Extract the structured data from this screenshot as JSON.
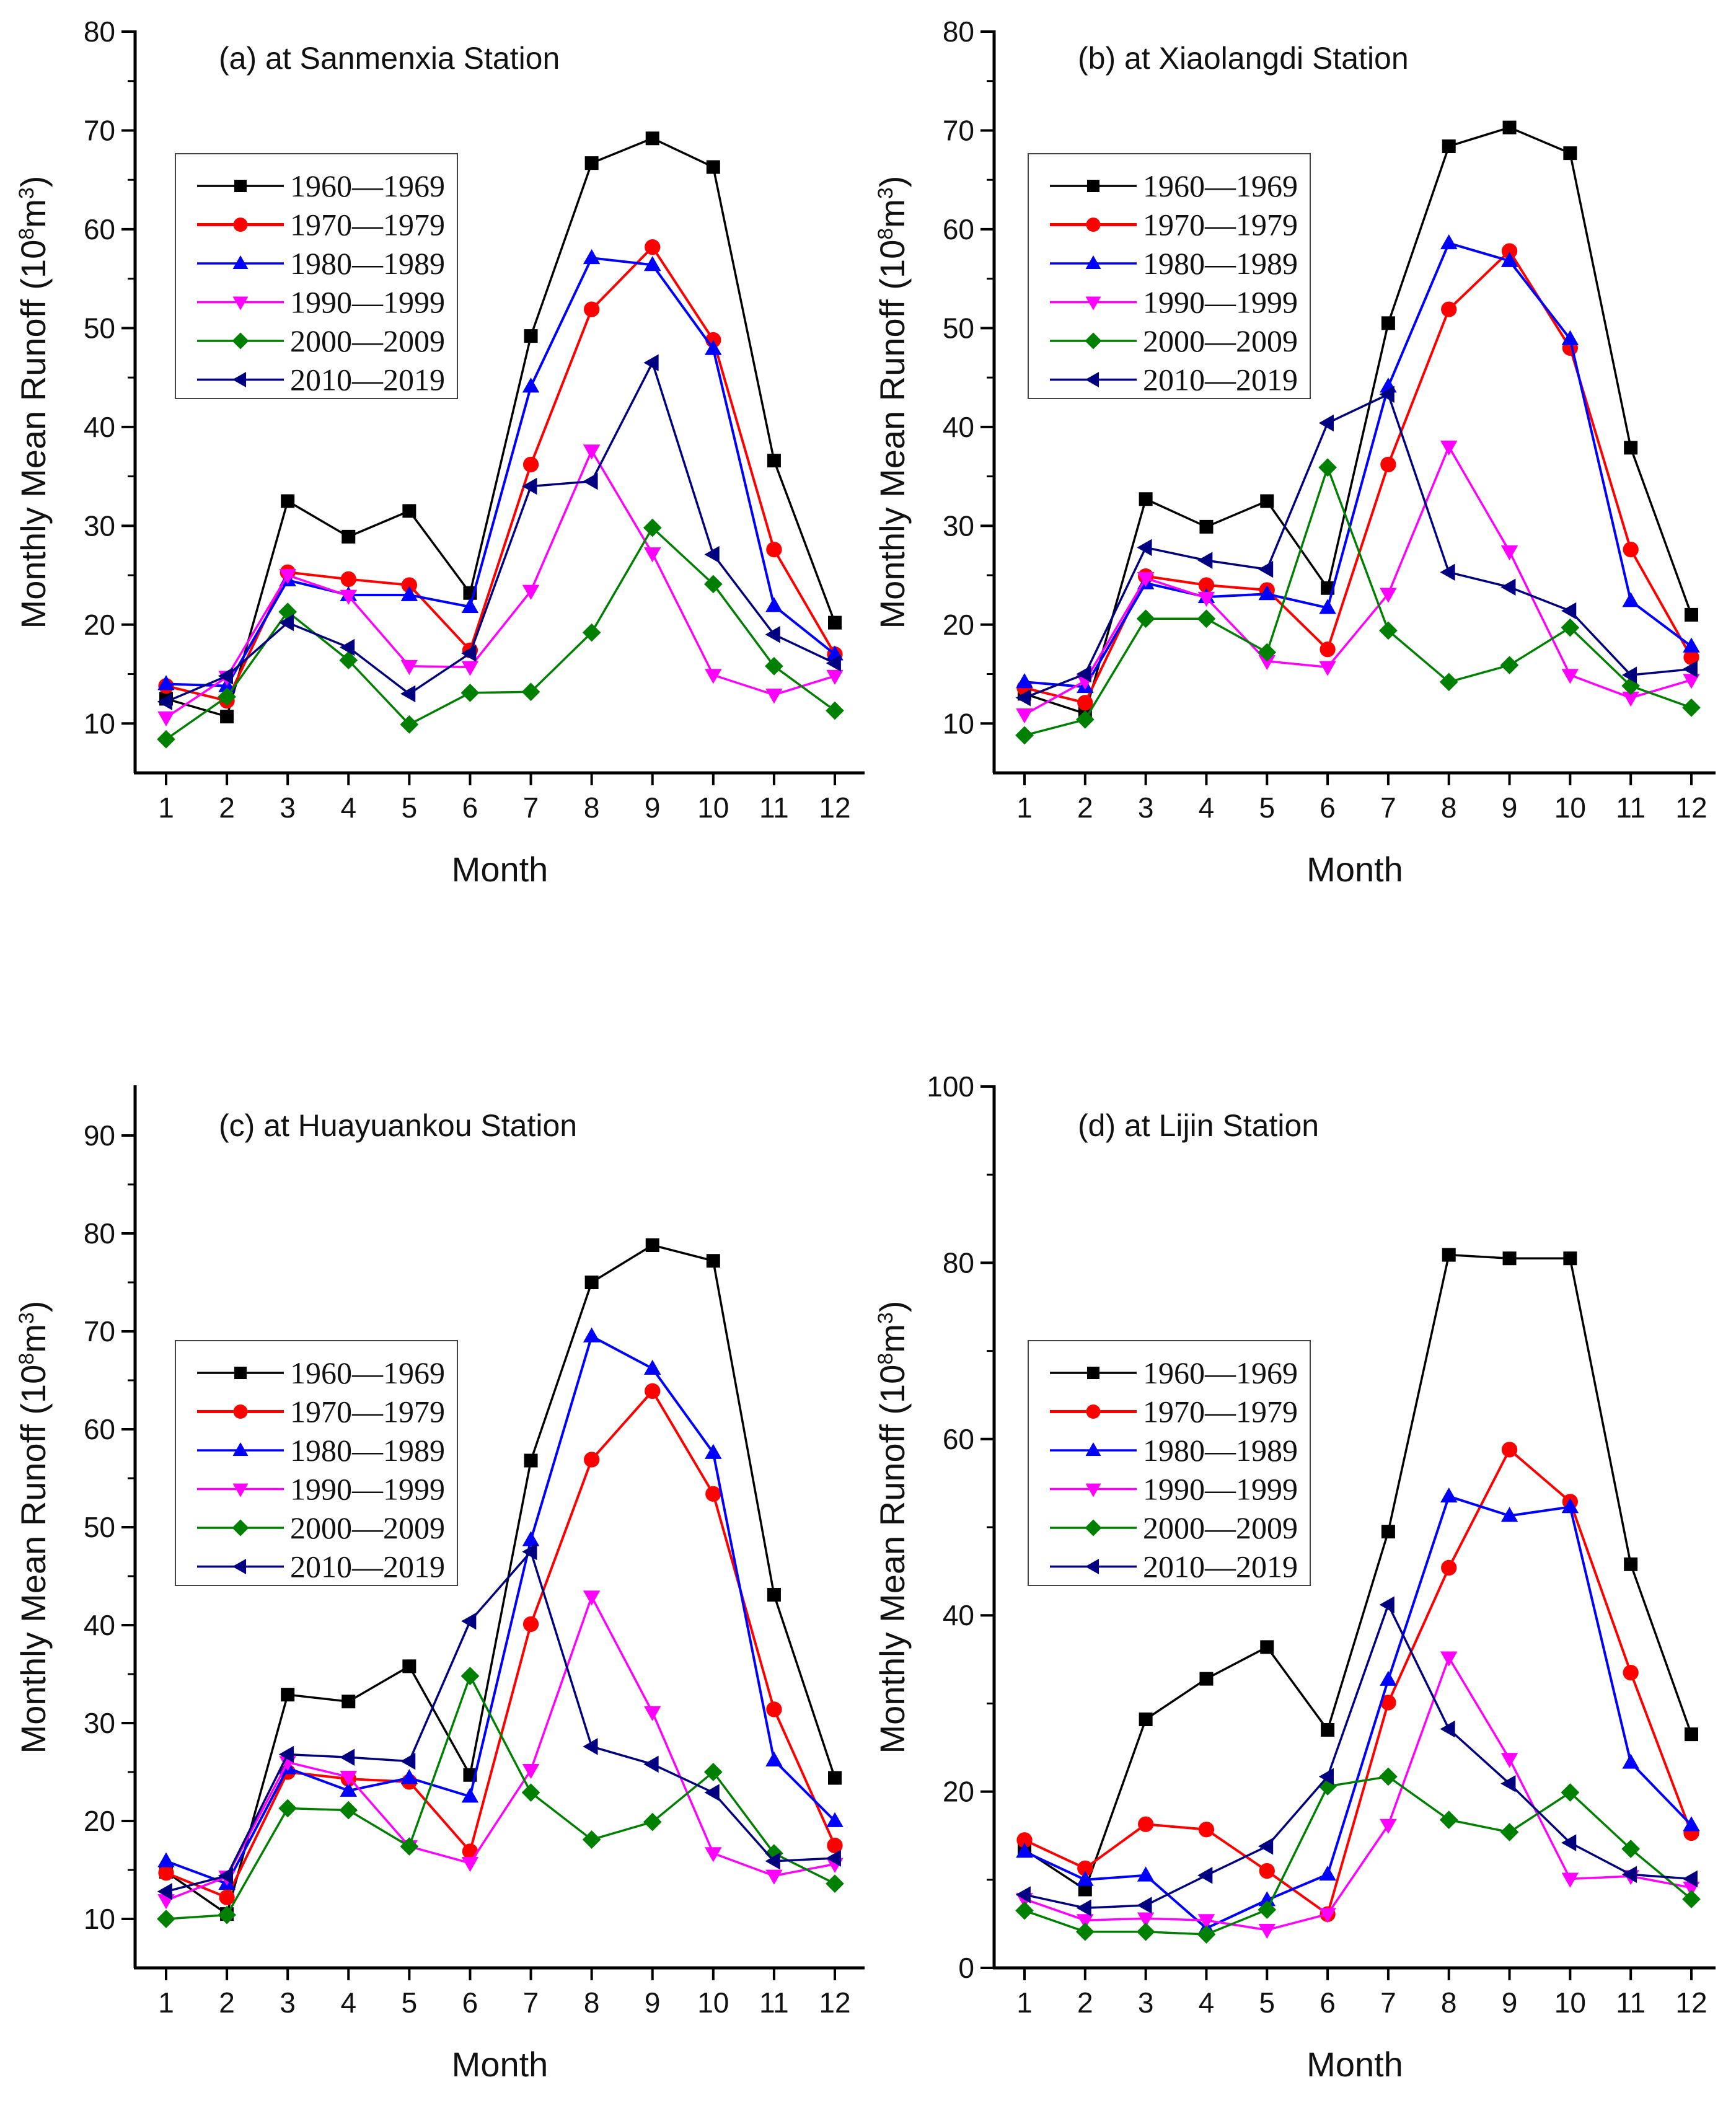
{
  "chart_data": [
    {
      "type": "line",
      "title": "(a) at Sanmenxia Station",
      "xlabel": "Month",
      "ylabel": "Monthly Mean Runoff (10^8m^3)",
      "ylabel_parts": {
        "base": "Monthly Mean Runoff (10",
        "sup1": "8",
        "mid": "m",
        "sup2": "3",
        "end": ")"
      },
      "ylim": [
        5,
        80
      ],
      "yticks": [
        10,
        20,
        30,
        40,
        50,
        60,
        70,
        80
      ],
      "x": [
        1,
        2,
        3,
        4,
        5,
        6,
        7,
        8,
        9,
        10,
        11,
        12
      ],
      "xtick_labels": [
        "1",
        "2",
        "3",
        "4",
        "5",
        "6",
        "7",
        "8",
        "9",
        "10",
        "11",
        "12"
      ],
      "legend_position": "upper-left",
      "series": [
        {
          "name": "1960—1969",
          "color": "#000000",
          "marker": "square",
          "values": [
            12.5,
            10.7,
            32.5,
            28.9,
            31.5,
            23.2,
            49.2,
            66.7,
            69.2,
            66.3,
            36.6,
            20.2
          ]
        },
        {
          "name": "1970—1979",
          "color": "#ff0000",
          "marker": "circle",
          "values": [
            13.8,
            12.3,
            25.3,
            24.6,
            24.0,
            17.4,
            36.2,
            51.9,
            58.2,
            48.8,
            27.6,
            17.0
          ]
        },
        {
          "name": "1980—1989",
          "color": "#0000ff",
          "marker": "triangle-up",
          "values": [
            14.0,
            13.8,
            24.5,
            23.0,
            23.0,
            21.8,
            44.1,
            57.1,
            56.4,
            47.9,
            21.9,
            17.0
          ]
        },
        {
          "name": "1990—1999",
          "color": "#ff00ff",
          "marker": "triangle-down",
          "values": [
            10.6,
            14.7,
            25.0,
            22.9,
            15.8,
            15.7,
            23.4,
            37.6,
            27.2,
            14.9,
            12.9,
            14.8
          ]
        },
        {
          "name": "2000—2009",
          "color": "#008000",
          "marker": "diamond",
          "values": [
            8.4,
            12.7,
            21.3,
            16.4,
            9.9,
            13.1,
            13.2,
            19.2,
            29.8,
            24.1,
            15.8,
            11.3
          ]
        },
        {
          "name": "2010—2019",
          "color": "#000080",
          "marker": "triangle-left",
          "values": [
            12.2,
            14.8,
            20.2,
            17.7,
            13.0,
            17.1,
            34.0,
            34.5,
            46.5,
            27.1,
            19.0,
            16.1
          ]
        }
      ]
    },
    {
      "type": "line",
      "title": "(b) at Xiaolangdi Station",
      "xlabel": "Month",
      "ylabel": "Monthly Mean Runoff (10^8m^3)",
      "ylabel_parts": {
        "base": "Monthly Mean Runoff (10",
        "sup1": "8",
        "mid": "m",
        "sup2": "3",
        "end": ")"
      },
      "ylim": [
        5,
        80
      ],
      "yticks": [
        10,
        20,
        30,
        40,
        50,
        60,
        70,
        80
      ],
      "x": [
        1,
        2,
        3,
        4,
        5,
        6,
        7,
        8,
        9,
        10,
        11,
        12
      ],
      "xtick_labels": [
        "1",
        "2",
        "3",
        "4",
        "5",
        "6",
        "7",
        "8",
        "9",
        "10",
        "11",
        "12"
      ],
      "legend_position": "upper-left",
      "series": [
        {
          "name": "1960—1969",
          "color": "#000000",
          "marker": "square",
          "values": [
            13.0,
            11.0,
            32.7,
            29.9,
            32.5,
            23.7,
            50.5,
            68.4,
            70.3,
            67.7,
            37.9,
            21.0
          ]
        },
        {
          "name": "1970—1979",
          "color": "#ff0000",
          "marker": "circle",
          "values": [
            13.6,
            12.1,
            24.9,
            24.0,
            23.5,
            17.5,
            36.2,
            51.9,
            57.8,
            48.0,
            27.6,
            16.7
          ]
        },
        {
          "name": "1980—1989",
          "color": "#0000ff",
          "marker": "triangle-up",
          "values": [
            14.2,
            13.7,
            24.2,
            22.8,
            23.1,
            21.7,
            44.1,
            58.6,
            56.8,
            48.9,
            22.4,
            17.8
          ]
        },
        {
          "name": "1990—1999",
          "color": "#ff00ff",
          "marker": "triangle-down",
          "values": [
            10.9,
            14.3,
            24.7,
            22.7,
            16.3,
            15.7,
            23.1,
            38.0,
            27.4,
            14.9,
            12.6,
            14.4
          ]
        },
        {
          "name": "2000—2009",
          "color": "#008000",
          "marker": "diamond",
          "values": [
            8.8,
            10.4,
            20.6,
            20.6,
            17.2,
            35.9,
            19.4,
            14.2,
            15.9,
            19.7,
            13.8,
            11.6
          ]
        },
        {
          "name": "2010—2019",
          "color": "#000080",
          "marker": "triangle-left",
          "values": [
            12.6,
            15.0,
            27.8,
            26.5,
            25.6,
            40.4,
            43.3,
            25.3,
            23.8,
            21.4,
            14.9,
            15.5
          ]
        }
      ]
    },
    {
      "type": "line",
      "title": "(c) at Huayuankou Station",
      "xlabel": "Month",
      "ylabel": "Monthly Mean Runoff (10^8m^3)",
      "ylabel_parts": {
        "base": "Monthly Mean Runoff (10",
        "sup1": "8",
        "mid": "m",
        "sup2": "3",
        "end": ")"
      },
      "ylim": [
        5,
        95
      ],
      "yticks": [
        10,
        20,
        30,
        40,
        50,
        60,
        70,
        80,
        90
      ],
      "x": [
        1,
        2,
        3,
        4,
        5,
        6,
        7,
        8,
        9,
        10,
        11,
        12
      ],
      "xtick_labels": [
        "1",
        "2",
        "3",
        "4",
        "5",
        "6",
        "7",
        "8",
        "9",
        "10",
        "11",
        "12"
      ],
      "legend_position": "upper-left",
      "series": [
        {
          "name": "1960—1969",
          "color": "#000000",
          "marker": "square",
          "values": [
            14.8,
            10.5,
            32.9,
            32.2,
            35.8,
            24.7,
            56.8,
            75.0,
            78.8,
            77.2,
            43.1,
            24.4
          ]
        },
        {
          "name": "1970—1979",
          "color": "#ff0000",
          "marker": "circle",
          "values": [
            14.7,
            12.2,
            25.0,
            24.3,
            24.0,
            16.9,
            40.1,
            56.9,
            63.9,
            53.4,
            31.4,
            17.5
          ]
        },
        {
          "name": "1980—1989",
          "color": "#0000ff",
          "marker": "triangle-up",
          "values": [
            15.9,
            13.6,
            25.4,
            23.1,
            24.4,
            22.5,
            48.7,
            69.5,
            66.2,
            57.6,
            26.2,
            20.0
          ]
        },
        {
          "name": "1990—1999",
          "color": "#ff00ff",
          "marker": "triangle-down",
          "values": [
            11.9,
            14.3,
            26.0,
            24.5,
            17.4,
            15.7,
            25.2,
            42.9,
            31.1,
            16.7,
            14.4,
            15.6
          ]
        },
        {
          "name": "2000—2009",
          "color": "#008000",
          "marker": "diamond",
          "values": [
            10.0,
            10.4,
            21.3,
            21.1,
            17.4,
            34.8,
            22.9,
            18.1,
            19.9,
            25.0,
            16.7,
            13.6
          ]
        },
        {
          "name": "2010—2019",
          "color": "#000080",
          "marker": "triangle-left",
          "values": [
            12.8,
            14.4,
            26.8,
            26.5,
            26.1,
            40.4,
            47.5,
            27.6,
            25.8,
            22.9,
            15.9,
            16.2
          ]
        }
      ]
    },
    {
      "type": "line",
      "title": "(d) at Lijin Station",
      "xlabel": "Month",
      "ylabel": "Monthly Mean Runoff (10^8m^3)",
      "ylabel_parts": {
        "base": "Monthly Mean Runoff (10",
        "sup1": "8",
        "mid": "m",
        "sup2": "3",
        "end": ")"
      },
      "ylim": [
        0,
        100
      ],
      "yticks": [
        0,
        20,
        40,
        60,
        80,
        100
      ],
      "x": [
        1,
        2,
        3,
        4,
        5,
        6,
        7,
        8,
        9,
        10,
        11,
        12
      ],
      "xtick_labels": [
        "1",
        "2",
        "3",
        "4",
        "5",
        "6",
        "7",
        "8",
        "9",
        "10",
        "11",
        "12"
      ],
      "legend_position": "upper-left",
      "series": [
        {
          "name": "1960—1969",
          "color": "#000000",
          "marker": "square",
          "values": [
            13.4,
            8.9,
            28.2,
            32.8,
            36.4,
            27.0,
            49.5,
            80.9,
            80.5,
            80.5,
            45.8,
            26.5
          ]
        },
        {
          "name": "1970—1979",
          "color": "#ff0000",
          "marker": "circle",
          "values": [
            14.5,
            11.3,
            16.3,
            15.7,
            11.0,
            6.1,
            30.1,
            45.4,
            58.8,
            52.9,
            33.5,
            15.3
          ]
        },
        {
          "name": "1980—1989",
          "color": "#0000ff",
          "marker": "triangle-up",
          "values": [
            13.2,
            10.0,
            10.5,
            4.5,
            7.7,
            10.6,
            32.7,
            53.5,
            51.3,
            52.3,
            23.3,
            16.2
          ]
        },
        {
          "name": "1990—1999",
          "color": "#ff00ff",
          "marker": "triangle-down",
          "values": [
            7.8,
            5.4,
            5.6,
            5.4,
            4.3,
            6.1,
            16.2,
            35.2,
            23.7,
            10.1,
            10.4,
            9.1
          ]
        },
        {
          "name": "2000—2009",
          "color": "#008000",
          "marker": "diamond",
          "values": [
            6.5,
            4.1,
            4.1,
            3.8,
            6.6,
            20.6,
            21.7,
            16.8,
            15.4,
            19.9,
            13.5,
            7.8
          ]
        },
        {
          "name": "2010—2019",
          "color": "#000080",
          "marker": "triangle-left",
          "values": [
            8.3,
            6.8,
            7.1,
            10.5,
            13.8,
            21.7,
            41.2,
            27.1,
            20.9,
            14.2,
            10.6,
            10.1
          ]
        }
      ]
    }
  ]
}
